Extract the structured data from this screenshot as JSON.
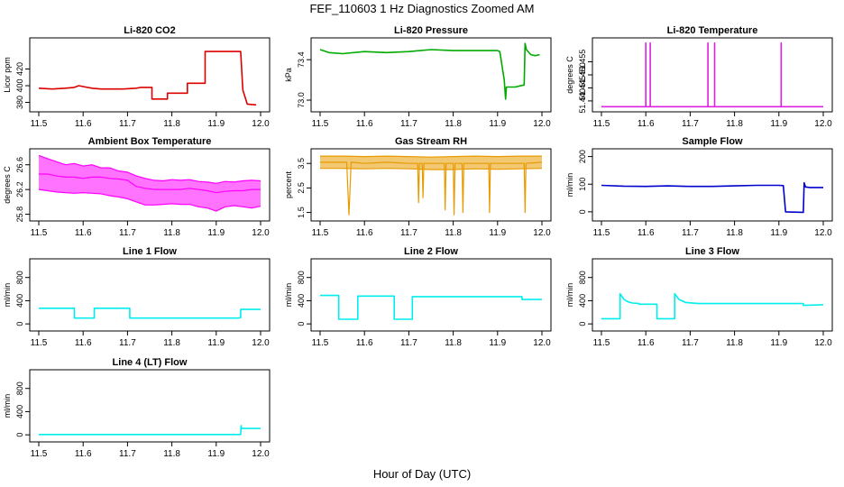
{
  "title": "FEF_110603  1 Hz Diagnostics Zoomed AM",
  "xlabel": "Hour of Day (UTC)",
  "chart_data": [
    {
      "type": "line",
      "title": "Li-820 CO2",
      "ylabel": "Licor ppm",
      "color": "#dd0000",
      "xlim": [
        11.5,
        12.0
      ],
      "ylim": [
        373,
        453
      ],
      "xticks": [
        "11.5",
        "11.6",
        "11.7",
        "11.8",
        "11.9",
        "12.0"
      ],
      "yticks": [
        {
          "v": 380,
          "label": "380"
        },
        {
          "v": 400,
          "label": "400"
        },
        {
          "v": 420,
          "label": "420"
        }
      ],
      "series": [
        {
          "x": [
            11.5,
            11.53,
            11.56,
            11.58,
            11.59,
            11.6,
            11.62,
            11.64,
            11.66,
            11.69,
            11.72,
            11.73,
            11.75,
            11.755,
            11.755,
            11.79,
            11.79,
            11.835,
            11.835,
            11.875,
            11.875,
            11.955,
            11.96,
            11.97,
            11.99
          ],
          "y": [
            397,
            396,
            397,
            398,
            400,
            399,
            397,
            396,
            396,
            396,
            397,
            398,
            398,
            398,
            384,
            384,
            391,
            391,
            403,
            403,
            441,
            441,
            395,
            378,
            377
          ]
        }
      ]
    },
    {
      "type": "line",
      "title": "Li-820 Pressure",
      "ylabel": "kPa",
      "color": "#00aa00",
      "xlim": [
        11.5,
        12.0
      ],
      "ylim": [
        72.92,
        73.58
      ],
      "xticks": [
        "11.5",
        "11.6",
        "11.7",
        "11.8",
        "11.9",
        "12.0"
      ],
      "yticks": [
        {
          "v": 73.0,
          "label": "73.0"
        },
        {
          "v": 73.4,
          "label": "73.4"
        }
      ],
      "series": [
        {
          "x": [
            11.5,
            11.52,
            11.55,
            11.6,
            11.65,
            11.7,
            11.75,
            11.8,
            11.85,
            11.9,
            11.905,
            11.915,
            11.918,
            11.92,
            11.94,
            11.95,
            11.96,
            11.962,
            11.965,
            11.975,
            11.985,
            11.995
          ],
          "y": [
            73.5,
            73.47,
            73.46,
            73.48,
            73.47,
            73.48,
            73.5,
            73.49,
            73.49,
            73.49,
            73.48,
            73.2,
            73.01,
            73.13,
            73.13,
            73.14,
            73.15,
            73.56,
            73.5,
            73.45,
            73.44,
            73.45
          ]
        }
      ]
    },
    {
      "type": "line",
      "title": "Li-820 Temperature",
      "ylabel": "degrees C",
      "color": "#e020e0",
      "xlim": [
        11.5,
        12.0
      ],
      "ylim": [
        51.4372,
        51.4628
      ],
      "xticks": [
        "11.5",
        "11.6",
        "11.7",
        "11.8",
        "11.9",
        "12.0"
      ],
      "yticks": [
        {
          "v": 51.44,
          "label": "51.440"
        },
        {
          "v": 51.445,
          "label": "51.445"
        },
        {
          "v": 51.45,
          "label": "51.450"
        },
        {
          "v": 51.455,
          "label": "51.455"
        }
      ],
      "series": [
        {
          "x": [
            11.5,
            11.6,
            11.6,
            11.6,
            11.61,
            11.61,
            11.61,
            11.74,
            11.74,
            11.74,
            11.755,
            11.755,
            11.755,
            11.905,
            11.905,
            11.905,
            12.0
          ],
          "y": [
            51.4378,
            51.4378,
            51.4622,
            51.4378,
            51.4378,
            51.4622,
            51.4378,
            51.4378,
            51.4622,
            51.4378,
            51.4378,
            51.4622,
            51.4378,
            51.4378,
            51.4622,
            51.4378,
            51.4378
          ]
        }
      ]
    },
    {
      "type": "line",
      "title": "Ambient Box Temperature",
      "ylabel": "degrees C",
      "color": "#ff00ff",
      "xlim": [
        11.5,
        12.0
      ],
      "ylim": [
        25.75,
        26.8
      ],
      "xticks": [
        "11.5",
        "11.6",
        "11.7",
        "11.8",
        "11.9",
        "12.0"
      ],
      "yticks": [
        {
          "v": 25.8,
          "label": "25.8"
        },
        {
          "v": 26.2,
          "label": "26.2"
        },
        {
          "v": 26.6,
          "label": "26.6"
        }
      ],
      "series": [
        {
          "x": [
            11.5,
            11.52,
            11.54,
            11.56,
            11.58,
            11.6,
            11.62,
            11.64,
            11.66,
            11.68,
            11.7,
            11.72,
            11.74,
            11.76,
            11.78,
            11.8,
            11.82,
            11.84,
            11.86,
            11.88,
            11.9,
            11.92,
            11.94,
            11.96,
            11.98,
            12.0
          ],
          "y": [
            26.45,
            26.45,
            26.42,
            26.4,
            26.4,
            26.38,
            26.4,
            26.4,
            26.38,
            26.37,
            26.35,
            26.25,
            26.22,
            26.2,
            26.2,
            26.2,
            26.2,
            26.22,
            26.2,
            26.18,
            26.15,
            26.17,
            26.18,
            26.18,
            26.2,
            26.2
          ]
        },
        {
          "x": [
            11.5,
            11.52,
            11.54,
            11.56,
            11.58,
            11.6,
            11.62,
            11.64,
            11.66,
            11.68,
            11.7,
            11.72,
            11.74,
            11.76,
            11.78,
            11.8,
            11.82,
            11.84,
            11.86,
            11.88,
            11.9,
            11.92,
            11.94,
            11.96,
            11.98,
            12.0
          ],
          "y": [
            26.75,
            26.7,
            26.65,
            26.6,
            26.62,
            26.58,
            26.6,
            26.55,
            26.55,
            26.5,
            26.48,
            26.42,
            26.38,
            26.35,
            26.34,
            26.36,
            26.35,
            26.36,
            26.33,
            26.32,
            26.3,
            26.33,
            26.32,
            26.34,
            26.35,
            26.34
          ]
        },
        {
          "x": [
            11.5,
            11.52,
            11.54,
            11.56,
            11.58,
            11.6,
            11.62,
            11.64,
            11.66,
            11.68,
            11.7,
            11.72,
            11.74,
            11.76,
            11.78,
            11.8,
            11.82,
            11.84,
            11.86,
            11.88,
            11.9,
            11.92,
            11.94,
            11.96,
            11.98,
            12.0
          ],
          "y": [
            26.2,
            26.18,
            26.16,
            26.15,
            26.14,
            26.15,
            26.14,
            26.13,
            26.1,
            26.08,
            26.05,
            26.0,
            25.95,
            25.95,
            25.96,
            25.97,
            25.96,
            25.96,
            25.92,
            25.9,
            25.85,
            25.92,
            25.94,
            25.92,
            25.9,
            25.93
          ]
        }
      ]
    },
    {
      "type": "line",
      "title": "Gas Stream RH",
      "ylabel": "percent",
      "color": "#e89a00",
      "xlim": [
        11.5,
        12.0
      ],
      "ylim": [
        1.3,
        3.95
      ],
      "xticks": [
        "11.5",
        "11.6",
        "11.7",
        "11.8",
        "11.9",
        "12.0"
      ],
      "yticks": [
        {
          "v": 1.5,
          "label": "1.5"
        },
        {
          "v": 2.5,
          "label": "2.5"
        },
        {
          "v": 3.5,
          "label": "3.5"
        }
      ],
      "series": [
        {
          "x": [
            11.5,
            11.56,
            11.565,
            11.57,
            11.6,
            11.65,
            11.7,
            11.72,
            11.722,
            11.724,
            11.73,
            11.732,
            11.734,
            11.78,
            11.782,
            11.784,
            11.8,
            11.802,
            11.804,
            11.82,
            11.822,
            11.824,
            11.88,
            11.882,
            11.884,
            11.96,
            11.962,
            11.964,
            12.0
          ],
          "y": [
            3.55,
            3.55,
            1.4,
            3.55,
            3.5,
            3.55,
            3.5,
            3.5,
            1.9,
            3.5,
            3.5,
            2.1,
            3.5,
            3.5,
            1.6,
            3.5,
            3.5,
            1.4,
            3.5,
            3.5,
            1.5,
            3.5,
            3.5,
            1.5,
            3.5,
            3.5,
            1.5,
            3.5,
            3.55
          ]
        },
        {
          "x": [
            11.5,
            11.55,
            11.6,
            11.65,
            11.7,
            11.75,
            11.8,
            11.85,
            11.9,
            11.95,
            12.0
          ],
          "y": [
            3.8,
            3.8,
            3.78,
            3.8,
            3.78,
            3.76,
            3.78,
            3.8,
            3.78,
            3.8,
            3.8
          ]
        },
        {
          "x": [
            11.5,
            11.55,
            11.6,
            11.65,
            11.7,
            11.75,
            11.8,
            11.85,
            11.9,
            11.95,
            12.0
          ],
          "y": [
            3.3,
            3.3,
            3.28,
            3.3,
            3.28,
            3.25,
            3.25,
            3.28,
            3.26,
            3.28,
            3.3
          ]
        }
      ]
    },
    {
      "type": "line",
      "title": "Sample Flow",
      "ylabel": "ml/min",
      "color": "#0000cc",
      "xlim": [
        11.5,
        12.0
      ],
      "ylim": [
        -20,
        215
      ],
      "xticks": [
        "11.5",
        "11.6",
        "11.7",
        "11.8",
        "11.9",
        "12.0"
      ],
      "yticks": [
        {
          "v": 0,
          "label": "0"
        },
        {
          "v": 100,
          "label": "100"
        },
        {
          "v": 200,
          "label": "200"
        }
      ],
      "series": [
        {
          "x": [
            11.5,
            11.55,
            11.6,
            11.65,
            11.7,
            11.75,
            11.8,
            11.85,
            11.9,
            11.91,
            11.915,
            11.955,
            11.957,
            11.96,
            11.97,
            12.0
          ],
          "y": [
            96,
            93,
            92,
            94,
            92,
            92,
            94,
            96,
            96,
            95,
            0,
            -2,
            105,
            90,
            88,
            88
          ]
        }
      ]
    },
    {
      "type": "line",
      "title": "Line 1 Flow",
      "ylabel": "ml/min",
      "color": "#00eeee",
      "xlim": [
        11.5,
        12.0
      ],
      "ylim": [
        -60,
        1060
      ],
      "xticks": [
        "11.5",
        "11.6",
        "11.7",
        "11.8",
        "11.9",
        "12.0"
      ],
      "yticks": [
        {
          "v": 0,
          "label": "0"
        },
        {
          "v": 400,
          "label": "400"
        },
        {
          "v": 800,
          "label": "800"
        }
      ],
      "series": [
        {
          "x": [
            11.5,
            11.58,
            11.58,
            11.625,
            11.625,
            11.705,
            11.705,
            11.95,
            11.955,
            11.955,
            12.0
          ],
          "y": [
            270,
            270,
            100,
            100,
            270,
            270,
            100,
            100,
            110,
            250,
            250
          ]
        }
      ]
    },
    {
      "type": "line",
      "title": "Line 2 Flow",
      "ylabel": "ml/min",
      "color": "#00eeee",
      "xlim": [
        11.5,
        12.0
      ],
      "ylim": [
        -60,
        1060
      ],
      "xticks": [
        "11.5",
        "11.6",
        "11.7",
        "11.8",
        "11.9",
        "12.0"
      ],
      "yticks": [
        {
          "v": 0,
          "label": "0"
        },
        {
          "v": 400,
          "label": "400"
        },
        {
          "v": 800,
          "label": "800"
        }
      ],
      "series": [
        {
          "x": [
            11.5,
            11.542,
            11.542,
            11.585,
            11.585,
            11.667,
            11.667,
            11.708,
            11.708,
            11.955,
            11.955,
            12.0
          ],
          "y": [
            490,
            490,
            80,
            80,
            480,
            480,
            80,
            80,
            470,
            470,
            420,
            420
          ]
        }
      ]
    },
    {
      "type": "line",
      "title": "Line 3 Flow",
      "ylabel": "ml/min",
      "color": "#00eeee",
      "xlim": [
        11.5,
        12.0
      ],
      "ylim": [
        -60,
        1060
      ],
      "xticks": [
        "11.5",
        "11.6",
        "11.7",
        "11.8",
        "11.9",
        "12.0"
      ],
      "yticks": [
        {
          "v": 0,
          "label": "0"
        },
        {
          "v": 400,
          "label": "400"
        },
        {
          "v": 800,
          "label": "800"
        }
      ],
      "series": [
        {
          "x": [
            11.5,
            11.542,
            11.542,
            11.55,
            11.56,
            11.57,
            11.585,
            11.585,
            11.625,
            11.625,
            11.665,
            11.665,
            11.675,
            11.69,
            11.72,
            11.8,
            11.9,
            11.955,
            11.955,
            12.0
          ],
          "y": [
            90,
            90,
            520,
            430,
            380,
            360,
            350,
            340,
            340,
            90,
            90,
            520,
            420,
            370,
            350,
            350,
            350,
            350,
            320,
            330
          ]
        }
      ]
    },
    {
      "type": "line",
      "title": "Line 4 (LT) Flow",
      "ylabel": "ml/min",
      "color": "#00eeee",
      "xlim": [
        11.5,
        12.0
      ],
      "ylim": [
        -60,
        1060
      ],
      "xticks": [
        "11.5",
        "11.6",
        "11.7",
        "11.8",
        "11.9",
        "12.0"
      ],
      "yticks": [
        {
          "v": 0,
          "label": "0"
        },
        {
          "v": 400,
          "label": "400"
        },
        {
          "v": 800,
          "label": "800"
        }
      ],
      "series": [
        {
          "x": [
            11.5,
            11.6,
            11.7,
            11.8,
            11.9,
            11.955,
            11.956,
            11.957,
            11.96,
            12.0
          ],
          "y": [
            5,
            5,
            5,
            5,
            5,
            5,
            160,
            110,
            110,
            110
          ]
        }
      ]
    }
  ]
}
